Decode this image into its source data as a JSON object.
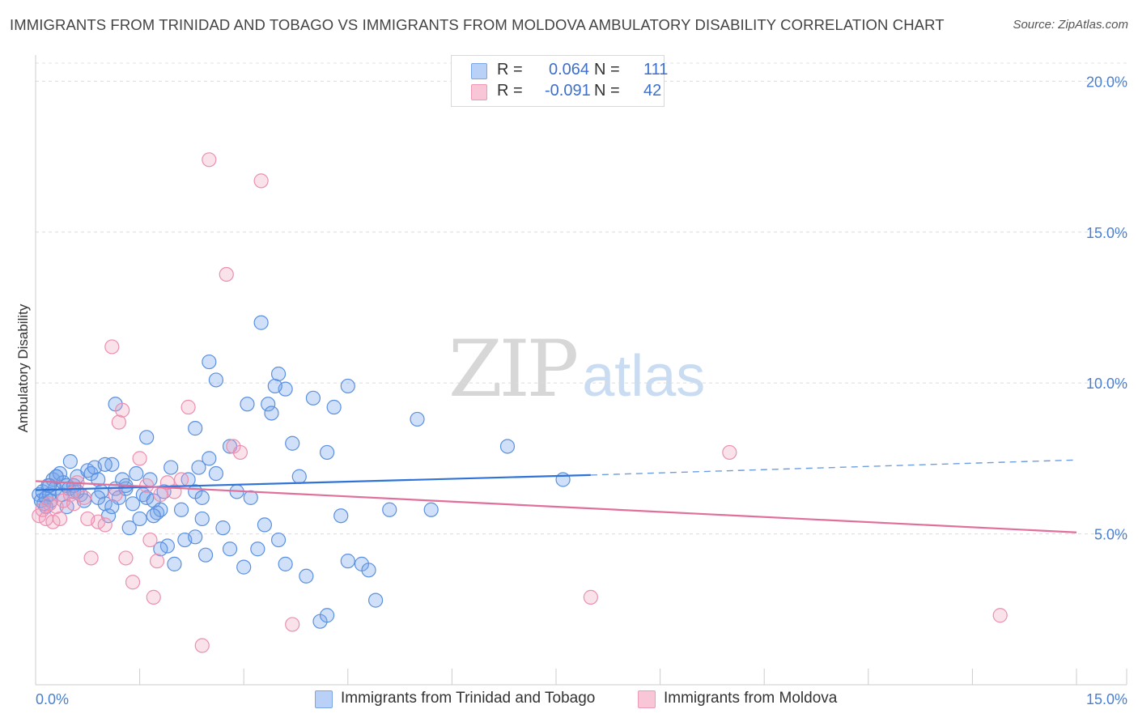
{
  "title": "IMMIGRANTS FROM TRINIDAD AND TOBAGO VS IMMIGRANTS FROM MOLDOVA AMBULATORY DISABILITY CORRELATION CHART",
  "source": "Source: ZipAtlas.com",
  "watermark": {
    "zip": "ZIP",
    "atlas": "atlas"
  },
  "legend": {
    "r_label": "R =",
    "n_label": "N =",
    "rows": [
      {
        "series": "Immigrants from Trinidad and Tobago",
        "r": "0.064",
        "n": "111",
        "color": "#4a86e0"
      },
      {
        "series": "Immigrants from Moldova",
        "r": "-0.091",
        "n": "42",
        "color": "#e87ba1"
      }
    ]
  },
  "chart_data": {
    "type": "scatter",
    "title": "IMMIGRANTS FROM TRINIDAD AND TOBAGO VS IMMIGRANTS FROM MOLDOVA AMBULATORY DISABILITY CORRELATION CHART",
    "xlabel": "",
    "ylabel": "Ambulatory Disability",
    "xlim": [
      0,
      15
    ],
    "ylim": [
      0,
      20.6
    ],
    "x_tick_labels": [
      {
        "value": 0,
        "label": "0.0%"
      },
      {
        "value": 15,
        "label": "15.0%"
      }
    ],
    "y_tick_labels": [
      {
        "value": 5,
        "label": "5.0%"
      },
      {
        "value": 10,
        "label": "10.0%"
      },
      {
        "value": 15,
        "label": "15.0%"
      },
      {
        "value": 20,
        "label": "20.0%"
      }
    ],
    "grid": "horizontal dashed",
    "legend_position": "top-center",
    "series": [
      {
        "name": "Immigrants from Trinidad and Tobago",
        "color": "#4a86e0",
        "trend": {
          "x0": 0,
          "y0": 6.45,
          "x1": 8.0,
          "y1": 6.95,
          "dashed_to_x": 15,
          "dashed_to_y": 7.45
        },
        "points": [
          [
            0.05,
            6.3
          ],
          [
            0.08,
            6.1
          ],
          [
            0.1,
            6.4
          ],
          [
            0.12,
            6.0
          ],
          [
            0.15,
            6.2
          ],
          [
            0.18,
            6.6
          ],
          [
            0.2,
            6.3
          ],
          [
            0.22,
            6.1
          ],
          [
            0.25,
            6.8
          ],
          [
            0.28,
            6.5
          ],
          [
            0.3,
            6.9
          ],
          [
            0.35,
            7.0
          ],
          [
            0.38,
            6.3
          ],
          [
            0.4,
            6.7
          ],
          [
            0.45,
            6.6
          ],
          [
            0.48,
            6.5
          ],
          [
            0.5,
            7.4
          ],
          [
            0.55,
            6.4
          ],
          [
            0.6,
            6.9
          ],
          [
            0.65,
            6.3
          ],
          [
            0.7,
            6.1
          ],
          [
            0.75,
            7.1
          ],
          [
            0.8,
            7.0
          ],
          [
            0.85,
            7.2
          ],
          [
            0.9,
            6.8
          ],
          [
            0.95,
            6.4
          ],
          [
            1.0,
            6.0
          ],
          [
            1.05,
            5.6
          ],
          [
            1.1,
            7.3
          ],
          [
            1.15,
            6.5
          ],
          [
            1.2,
            6.2
          ],
          [
            1.25,
            6.8
          ],
          [
            1.3,
            6.5
          ],
          [
            1.35,
            5.2
          ],
          [
            1.4,
            6.0
          ],
          [
            1.45,
            7.0
          ],
          [
            1.5,
            5.5
          ],
          [
            1.55,
            6.3
          ],
          [
            1.6,
            6.2
          ],
          [
            1.65,
            6.8
          ],
          [
            1.7,
            6.1
          ],
          [
            1.75,
            5.7
          ],
          [
            1.8,
            5.8
          ],
          [
            1.85,
            6.4
          ],
          [
            1.9,
            4.6
          ],
          [
            1.95,
            7.2
          ],
          [
            2.0,
            4.0
          ],
          [
            2.1,
            5.8
          ],
          [
            2.15,
            4.8
          ],
          [
            2.2,
            6.8
          ],
          [
            2.3,
            6.4
          ],
          [
            2.35,
            7.2
          ],
          [
            2.4,
            6.2
          ],
          [
            2.45,
            4.3
          ],
          [
            2.5,
            7.5
          ],
          [
            2.6,
            7.0
          ],
          [
            2.7,
            5.2
          ],
          [
            2.8,
            7.9
          ],
          [
            2.9,
            6.4
          ],
          [
            3.0,
            3.9
          ],
          [
            3.05,
            9.3
          ],
          [
            3.1,
            6.2
          ],
          [
            3.2,
            4.5
          ],
          [
            3.3,
            5.3
          ],
          [
            3.35,
            9.3
          ],
          [
            3.4,
            9.0
          ],
          [
            3.5,
            4.8
          ],
          [
            3.6,
            9.8
          ],
          [
            3.7,
            8.0
          ],
          [
            3.8,
            6.9
          ],
          [
            3.9,
            3.6
          ],
          [
            4.0,
            9.5
          ],
          [
            4.1,
            2.1
          ],
          [
            4.2,
            7.7
          ],
          [
            4.3,
            9.2
          ],
          [
            4.4,
            5.6
          ],
          [
            4.5,
            9.9
          ],
          [
            4.7,
            4.0
          ],
          [
            4.8,
            3.8
          ],
          [
            4.9,
            2.8
          ],
          [
            5.1,
            5.8
          ],
          [
            5.5,
            8.8
          ],
          [
            5.7,
            5.8
          ],
          [
            6.8,
            7.9
          ],
          [
            7.6,
            6.8
          ],
          [
            1.0,
            7.3
          ],
          [
            1.6,
            8.2
          ],
          [
            2.3,
            8.5
          ],
          [
            2.6,
            10.1
          ],
          [
            2.5,
            10.7
          ],
          [
            1.15,
            9.3
          ],
          [
            3.25,
            12.0
          ],
          [
            3.45,
            9.9
          ],
          [
            3.5,
            10.3
          ],
          [
            2.4,
            5.5
          ],
          [
            0.55,
            6.6
          ],
          [
            0.3,
            6.9
          ],
          [
            0.9,
            6.2
          ],
          [
            1.3,
            6.6
          ],
          [
            0.45,
            5.9
          ],
          [
            1.8,
            4.5
          ],
          [
            2.3,
            4.9
          ],
          [
            2.8,
            4.5
          ],
          [
            3.6,
            4.0
          ],
          [
            4.5,
            4.1
          ],
          [
            4.2,
            2.3
          ],
          [
            0.2,
            6.6
          ],
          [
            0.6,
            6.4
          ],
          [
            1.1,
            5.9
          ],
          [
            1.7,
            5.6
          ],
          [
            0.15,
            5.9
          ]
        ]
      },
      {
        "name": "Immigrants from Moldova",
        "color": "#e87ba1",
        "trend": {
          "x0": 0,
          "y0": 6.75,
          "x1": 15,
          "y1": 5.05
        },
        "points": [
          [
            0.05,
            5.6
          ],
          [
            0.1,
            5.8
          ],
          [
            0.15,
            5.5
          ],
          [
            0.2,
            6.0
          ],
          [
            0.25,
            5.4
          ],
          [
            0.3,
            5.9
          ],
          [
            0.4,
            6.1
          ],
          [
            0.5,
            6.3
          ],
          [
            0.6,
            6.7
          ],
          [
            0.7,
            6.2
          ],
          [
            0.8,
            4.2
          ],
          [
            0.9,
            5.4
          ],
          [
            1.0,
            5.3
          ],
          [
            1.1,
            11.2
          ],
          [
            1.2,
            8.7
          ],
          [
            1.25,
            9.1
          ],
          [
            1.3,
            4.2
          ],
          [
            1.4,
            3.4
          ],
          [
            1.5,
            7.5
          ],
          [
            1.6,
            6.6
          ],
          [
            1.65,
            4.8
          ],
          [
            1.75,
            4.1
          ],
          [
            1.8,
            6.3
          ],
          [
            1.9,
            6.7
          ],
          [
            2.0,
            6.4
          ],
          [
            2.1,
            6.8
          ],
          [
            2.2,
            9.2
          ],
          [
            2.4,
            1.3
          ],
          [
            2.5,
            17.4
          ],
          [
            2.75,
            13.6
          ],
          [
            2.85,
            7.9
          ],
          [
            2.95,
            7.7
          ],
          [
            3.25,
            16.7
          ],
          [
            3.7,
            2.0
          ],
          [
            8.0,
            2.9
          ],
          [
            10.0,
            7.7
          ],
          [
            13.9,
            2.3
          ],
          [
            1.7,
            2.9
          ],
          [
            0.35,
            5.5
          ],
          [
            0.55,
            6.0
          ],
          [
            1.15,
            6.3
          ],
          [
            0.75,
            5.5
          ]
        ]
      }
    ]
  }
}
